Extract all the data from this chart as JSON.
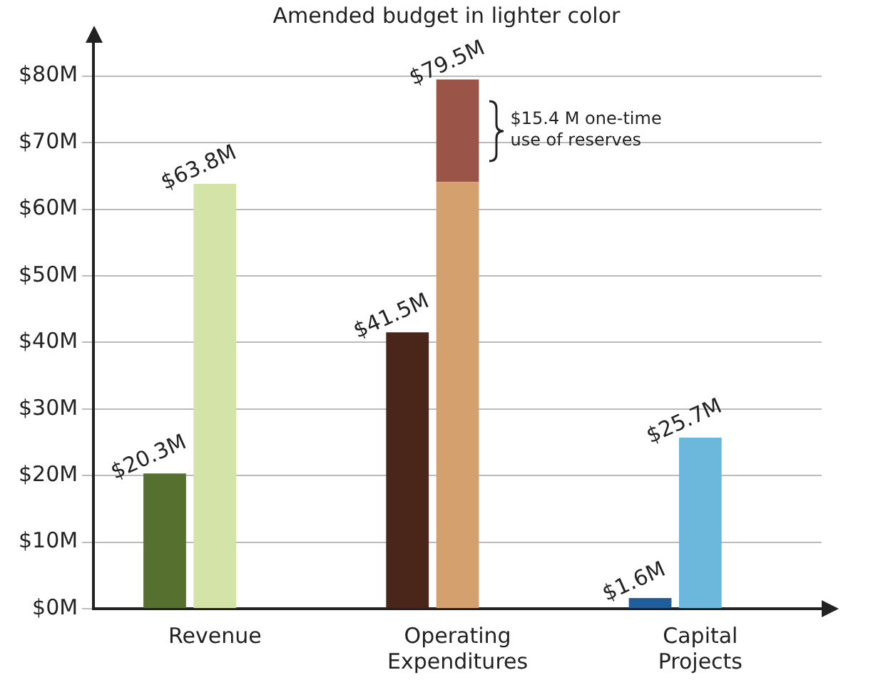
{
  "chart_data": {
    "type": "bar",
    "title": "Amended budget in lighter color",
    "categories": [
      "Revenue",
      "Operating Expenditures",
      "Capital Projects"
    ],
    "series": [
      {
        "colors": [
          "#56702f",
          "#4a2519",
          "#1f5e9a"
        ],
        "values": [
          20.3,
          41.5,
          1.6
        ],
        "value_labels": [
          "$20.3M",
          "$41.5M",
          "$1.6M"
        ]
      },
      {
        "colors": [
          "#d4e3a8",
          "#d4a06e",
          "#6cb8dc"
        ],
        "values": [
          63.8,
          64.1,
          25.7
        ],
        "value_labels": [
          "$63.8M",
          null,
          "$25.7M"
        ]
      },
      {
        "colors": [
          null,
          "#9a5548",
          null
        ],
        "values": [
          null,
          15.4,
          null
        ],
        "base": [
          null,
          64.1,
          null
        ]
      }
    ],
    "ylim": [
      0,
      85
    ],
    "yticks": [
      {
        "value": 0,
        "label": "$0M"
      },
      {
        "value": 10,
        "label": "$10M"
      },
      {
        "value": 20,
        "label": "$20M"
      },
      {
        "value": 30,
        "label": "$30M"
      },
      {
        "value": 40,
        "label": "$40M"
      },
      {
        "value": 50,
        "label": "$50M"
      },
      {
        "value": 60,
        "label": "$60M"
      },
      {
        "value": 70,
        "label": "$70M"
      },
      {
        "value": 80,
        "label": "$80M"
      }
    ],
    "grid": "y",
    "legend": false,
    "annotations": [
      {
        "text": "$79.5M",
        "x": "Operating Expenditures",
        "y": 79.5
      },
      "$15.4 M one-time use of reserves"
    ]
  }
}
